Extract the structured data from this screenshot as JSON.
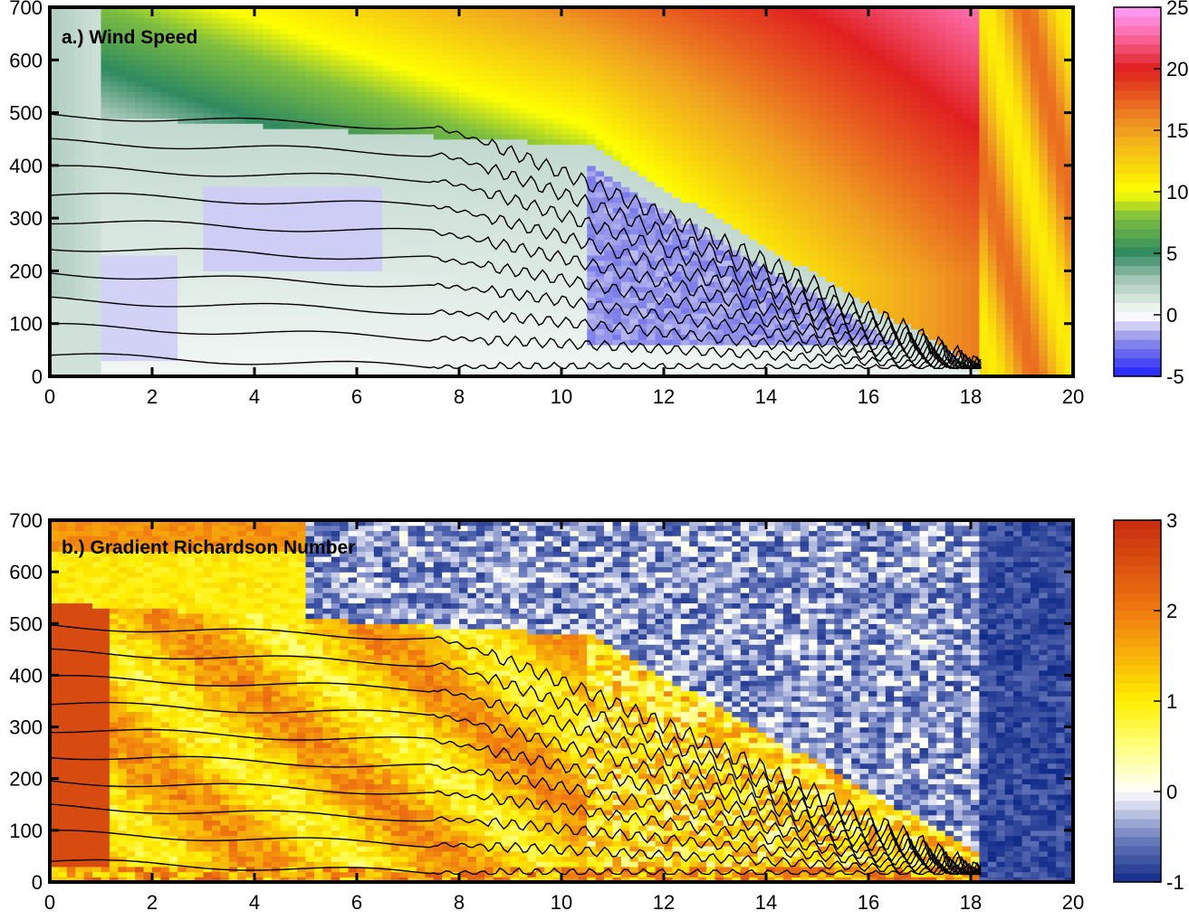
{
  "chart_data": [
    {
      "type": "heatmap",
      "panel_label": "a.) Wind Speed",
      "xlabel": "",
      "ylabel": "",
      "xlim": [
        0,
        20
      ],
      "ylim": [
        0,
        700
      ],
      "x_ticks": [
        "0",
        "2",
        "4",
        "6",
        "8",
        "10",
        "12",
        "14",
        "16",
        "18",
        "20"
      ],
      "y_ticks": [
        "0",
        "100",
        "200",
        "300",
        "400",
        "500",
        "600",
        "700"
      ],
      "colorbar": {
        "range": [
          -5,
          25
        ],
        "tick_labels": [
          "25",
          "20",
          "15",
          "10",
          "5",
          "0",
          "-5"
        ],
        "colormap_stops": [
          {
            "value": -5,
            "color": "#1f1fff"
          },
          {
            "value": -2,
            "color": "#8f8fe8"
          },
          {
            "value": 0,
            "color": "#ffffff"
          },
          {
            "value": 3,
            "color": "#9fc3b3"
          },
          {
            "value": 5,
            "color": "#2f8a5f"
          },
          {
            "value": 8,
            "color": "#7fbf3f"
          },
          {
            "value": 10,
            "color": "#ffff00"
          },
          {
            "value": 15,
            "color": "#f0a020"
          },
          {
            "value": 20,
            "color": "#e02020"
          },
          {
            "value": 23,
            "color": "#ff6fb0"
          },
          {
            "value": 25,
            "color": "#ff9fff"
          }
        ]
      },
      "overlay": "isentrope contours (black lines)"
    },
    {
      "type": "heatmap",
      "panel_label": "b.) Gradient Richardson Number",
      "xlabel": "",
      "ylabel": "",
      "xlim": [
        0,
        20
      ],
      "ylim": [
        0,
        700
      ],
      "x_ticks": [
        "0",
        "2",
        "4",
        "6",
        "8",
        "10",
        "12",
        "14",
        "16",
        "18",
        "20"
      ],
      "y_ticks": [
        "0",
        "100",
        "200",
        "300",
        "400",
        "500",
        "600",
        "700"
      ],
      "colorbar": {
        "range": [
          -1,
          3
        ],
        "tick_labels": [
          "3",
          "2",
          "1",
          "0",
          "-1"
        ],
        "colormap_stops": [
          {
            "value": -1,
            "color": "#102a88"
          },
          {
            "value": -0.5,
            "color": "#7080c0"
          },
          {
            "value": 0,
            "color": "#ffffff"
          },
          {
            "value": 0.5,
            "color": "#ffff80"
          },
          {
            "value": 1,
            "color": "#ffee00"
          },
          {
            "value": 2,
            "color": "#f07a10"
          },
          {
            "value": 3,
            "color": "#c82b10"
          }
        ]
      },
      "overlay": "isentrope contours (black lines)"
    }
  ],
  "contours": {
    "start_heights": [
      40,
      95,
      145,
      195,
      245,
      295,
      345,
      395,
      445,
      495
    ],
    "convergence_point": [
      18.2,
      15
    ]
  }
}
